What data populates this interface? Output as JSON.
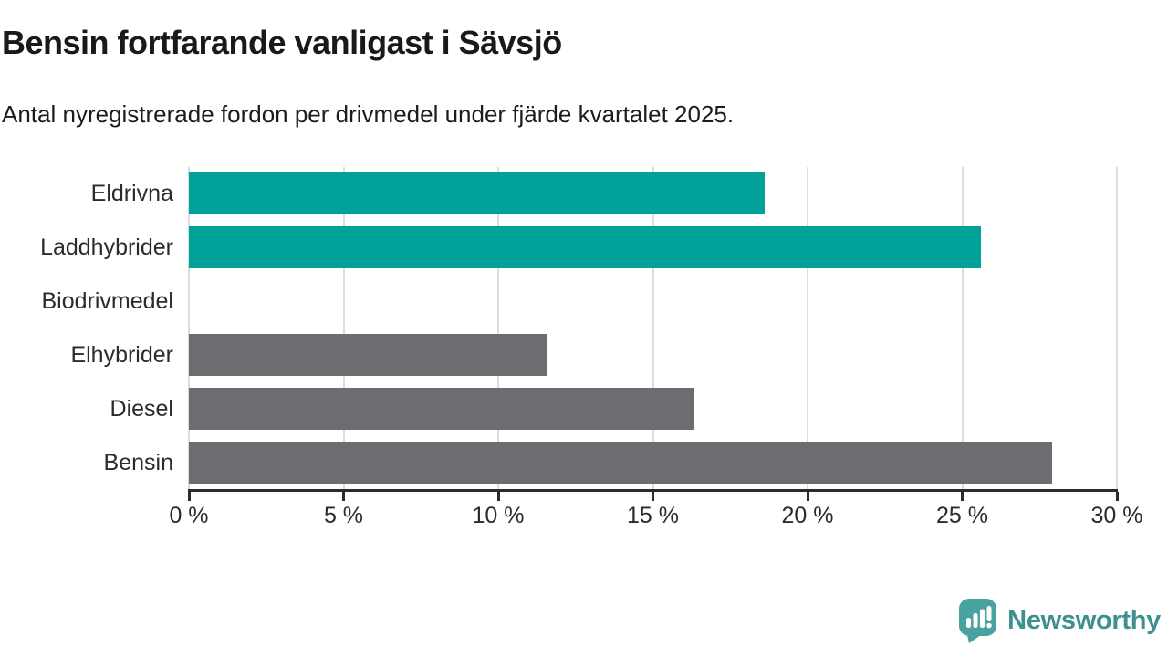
{
  "chart_data": {
    "type": "bar",
    "orientation": "horizontal",
    "title": "Bensin fortfarande vanligast i Sävsjö",
    "subtitle": "Antal nyregistrerade fordon per drivmedel under fjärde kvartalet 2025.",
    "categories": [
      "Eldrivna",
      "Laddhybrider",
      "Biodrivmedel",
      "Elhybrider",
      "Diesel",
      "Bensin"
    ],
    "values": [
      18.6,
      25.6,
      0,
      11.6,
      16.3,
      27.9
    ],
    "unit": "%",
    "xlim": [
      0,
      30
    ],
    "x_ticks": [
      0,
      5,
      10,
      15,
      20,
      25,
      30
    ],
    "x_tick_labels": [
      "0 %",
      "5 %",
      "10 %",
      "15 %",
      "20 %",
      "25 %",
      "30 %"
    ],
    "grid": true,
    "legend": "none",
    "bar_colors": [
      "#00a198",
      "#00a198",
      "#6c6c71",
      "#6c6c71",
      "#6c6c71",
      "#6c6c71"
    ],
    "highlight_color": "#00a198",
    "default_color": "#6c6c71"
  },
  "branding": {
    "logo_text": "Newsworthy",
    "logo_icon": "newsworthy-speech-bubble-chart-icon",
    "logo_icon_color": "#49a2a0",
    "logo_text_color": "#3c908e"
  }
}
